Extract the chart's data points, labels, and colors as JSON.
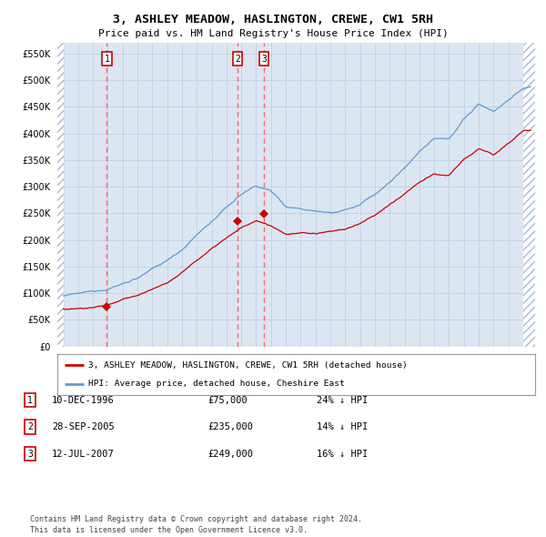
{
  "title": "3, ASHLEY MEADOW, HASLINGTON, CREWE, CW1 5RH",
  "subtitle": "Price paid vs. HM Land Registry's House Price Index (HPI)",
  "bg_color": "#dce6f1",
  "plot_bg_color": "#dce6f1",
  "hpi_color": "#6699cc",
  "price_color": "#cc0000",
  "marker_color": "#cc0000",
  "dashed_color": "#ff6666",
  "ylim": [
    0,
    570000
  ],
  "yticks": [
    0,
    50000,
    100000,
    150000,
    200000,
    250000,
    300000,
    350000,
    400000,
    450000,
    500000,
    550000
  ],
  "ytick_labels": [
    "£0",
    "£50K",
    "£100K",
    "£150K",
    "£200K",
    "£250K",
    "£300K",
    "£350K",
    "£400K",
    "£450K",
    "£500K",
    "£550K"
  ],
  "xlim_start": 1993.6,
  "xlim_end": 2025.8,
  "sale_dates_num": [
    1996.94,
    2005.74,
    2007.53
  ],
  "sale_prices": [
    75000,
    235000,
    249000
  ],
  "sale_labels": [
    "1",
    "2",
    "3"
  ],
  "sale_display": [
    {
      "num": 1,
      "date": "10-DEC-1996",
      "price": "£75,000",
      "hpi": "24% ↓ HPI"
    },
    {
      "num": 2,
      "date": "28-SEP-2005",
      "price": "£235,000",
      "hpi": "14% ↓ HPI"
    },
    {
      "num": 3,
      "date": "12-JUL-2007",
      "price": "£249,000",
      "hpi": "16% ↓ HPI"
    }
  ],
  "legend_label_red": "3, ASHLEY MEADOW, HASLINGTON, CREWE, CW1 5RH (detached house)",
  "legend_label_blue": "HPI: Average price, detached house, Cheshire East",
  "footer": "Contains HM Land Registry data © Crown copyright and database right 2024.\nThis data is licensed under the Open Government Licence v3.0.",
  "hpi_control_years": [
    1994,
    1995,
    1996,
    1997,
    1998,
    1999,
    2000,
    2001,
    2002,
    2003,
    2004,
    2005,
    2006,
    2007,
    2008,
    2009,
    2010,
    2011,
    2012,
    2013,
    2014,
    2015,
    2016,
    2017,
    2018,
    2019,
    2020,
    2021,
    2022,
    2023,
    2024,
    2025
  ],
  "hpi_control_vals": [
    95000,
    97000,
    100000,
    108000,
    118000,
    130000,
    145000,
    160000,
    182000,
    210000,
    235000,
    260000,
    285000,
    302000,
    292000,
    264000,
    261000,
    258000,
    258000,
    263000,
    272000,
    290000,
    312000,
    338000,
    370000,
    392000,
    388000,
    428000,
    455000,
    443000,
    465000,
    488000
  ],
  "price_control_years": [
    1994,
    1995,
    1996,
    1997,
    1998,
    1999,
    2000,
    2001,
    2002,
    2003,
    2004,
    2005,
    2006,
    2007,
    2008,
    2009,
    2010,
    2011,
    2012,
    2013,
    2014,
    2015,
    2016,
    2017,
    2018,
    2019,
    2020,
    2021,
    2022,
    2023,
    2024,
    2025
  ],
  "price_control_vals": [
    70000,
    72000,
    74000,
    80000,
    88000,
    96000,
    108000,
    120000,
    140000,
    162000,
    185000,
    205000,
    225000,
    238000,
    228000,
    212000,
    215000,
    213000,
    215000,
    220000,
    230000,
    245000,
    263000,
    285000,
    308000,
    322000,
    320000,
    348000,
    370000,
    358000,
    382000,
    406000
  ]
}
